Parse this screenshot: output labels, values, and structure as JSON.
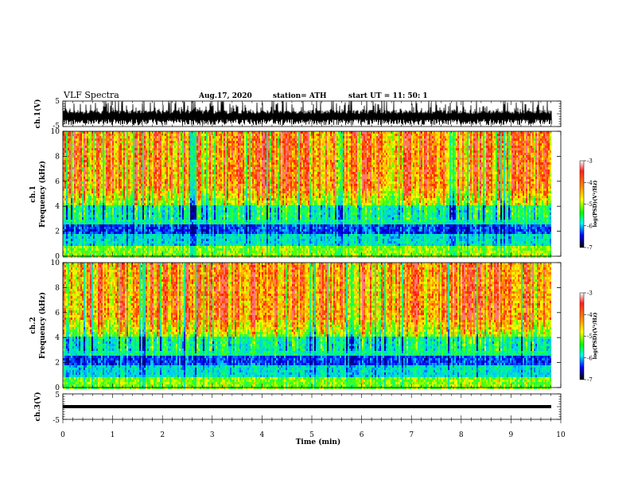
{
  "header": {
    "title": "VLF Spectra",
    "date": "Aug.17, 2020",
    "station": "station= ATH",
    "start": "start  UT =   11: 50: 1"
  },
  "chart_data": [
    {
      "type": "line",
      "name": "ch1-waveform",
      "ylabel": "ch.1(V)",
      "ylim": [
        -5,
        5
      ],
      "yticks": [
        "5",
        "-5"
      ],
      "xlim": [
        0,
        10
      ]
    },
    {
      "type": "heatmap",
      "name": "ch1-spectrogram",
      "ylabel": "ch.1\nFrequency (kHz)",
      "ylim": [
        0,
        10
      ],
      "yticks": [
        "0",
        "2",
        "4",
        "6",
        "8",
        "10"
      ],
      "xlim": [
        0,
        10
      ],
      "colorbar": {
        "label": "log(PSD)(V²/Hz)",
        "range": [
          -7,
          -3
        ],
        "ticks": [
          "-3",
          "-4",
          "-5",
          "-6",
          "-7"
        ],
        "colors": [
          "#ffffff",
          "#ff0000",
          "#ffaa00",
          "#ffff00",
          "#00ff00",
          "#00ffff",
          "#0000ff",
          "#000000"
        ]
      }
    },
    {
      "type": "heatmap",
      "name": "ch2-spectrogram",
      "ylabel": "ch.2\nFrequency (kHz)",
      "ylim": [
        0,
        10
      ],
      "yticks": [
        "0",
        "2",
        "4",
        "6",
        "8",
        "10"
      ],
      "xlim": [
        0,
        10
      ],
      "colorbar": {
        "label": "log(PSD)(V²/Hz)",
        "range": [
          -7,
          -3
        ],
        "ticks": [
          "-3",
          "-4",
          "-5",
          "-6",
          "-7"
        ],
        "colors": [
          "#ffffff",
          "#ff0000",
          "#ffaa00",
          "#ffff00",
          "#00ff00",
          "#00ffff",
          "#0000ff",
          "#000000"
        ]
      }
    },
    {
      "type": "line",
      "name": "ch3-waveform",
      "ylabel": "ch.3(V)",
      "ylim": [
        -5,
        5
      ],
      "yticks": [
        "5",
        "-5"
      ],
      "xlim": [
        0,
        10
      ],
      "xlabel": "Time (min)",
      "xticks": [
        "0",
        "1",
        "2",
        "3",
        "4",
        "5",
        "6",
        "7",
        "8",
        "9",
        "10"
      ]
    }
  ]
}
